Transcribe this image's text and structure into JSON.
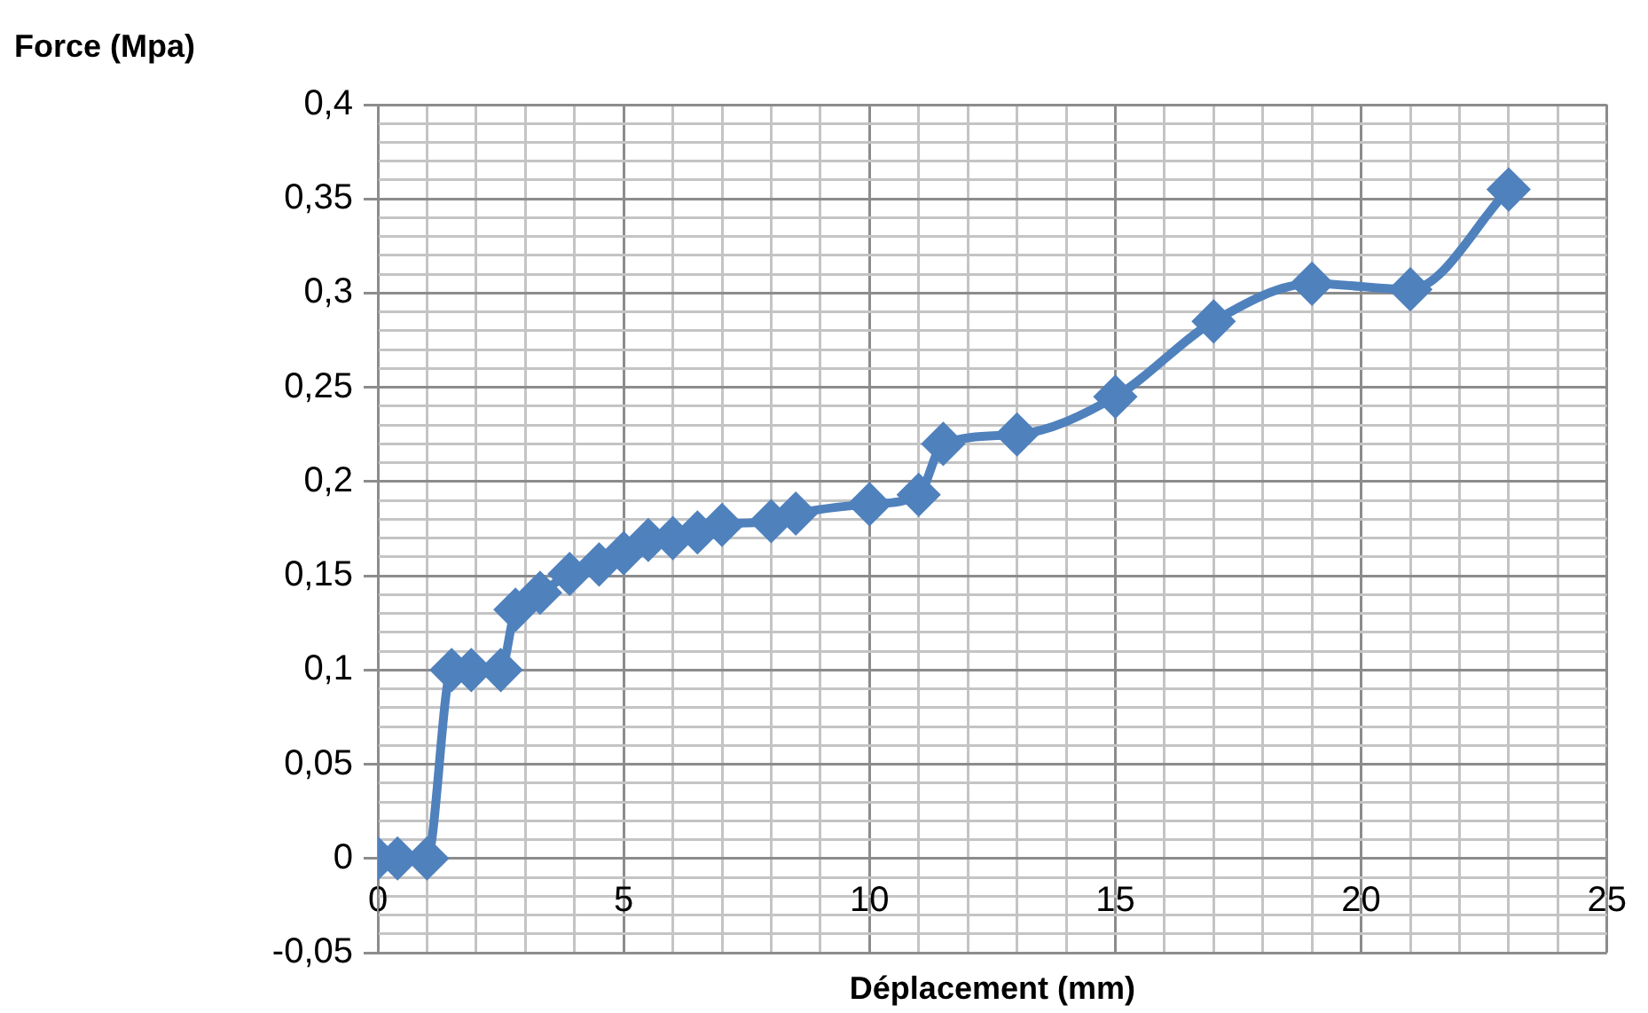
{
  "chart_data": {
    "type": "line",
    "xlabel": "Déplacement (mm)",
    "ylabel": "Force (Mpa)",
    "x": [
      0,
      0.4,
      1,
      1.5,
      1.9,
      2.5,
      2.8,
      3.3,
      3.9,
      4.5,
      5,
      5.5,
      6,
      6.5,
      7,
      8,
      8.5,
      10,
      11,
      11.5,
      13,
      15,
      17,
      19,
      21,
      23
    ],
    "series": [
      {
        "color": "#4f81bd",
        "values": [
          0,
          0,
          0,
          0.1,
          0.1,
          0.1,
          0.132,
          0.141,
          0.151,
          0.156,
          0.162,
          0.169,
          0.17,
          0.173,
          0.177,
          0.179,
          0.183,
          0.188,
          0.193,
          0.22,
          0.225,
          0.245,
          0.285,
          0.305,
          0.302,
          0.355
        ]
      }
    ],
    "xlim": [
      0,
      25
    ],
    "xticks": [
      0,
      {
        "value": 1,
        "label": null
      },
      {
        "value": 2,
        "label": null
      },
      {
        "value": 3,
        "label": null
      },
      {
        "value": 4,
        "label": null
      },
      5,
      {
        "value": 6,
        "label": null
      },
      {
        "value": 7,
        "label": null
      },
      {
        "value": 8,
        "label": null
      },
      {
        "value": 9,
        "label": null
      },
      10,
      {
        "value": 11,
        "label": null
      },
      {
        "value": 12,
        "label": null
      },
      {
        "value": 13,
        "label": null
      },
      {
        "value": 14,
        "label": null
      },
      15,
      {
        "value": 16,
        "label": null
      },
      {
        "value": 17,
        "label": null
      },
      {
        "value": 18,
        "label": null
      },
      {
        "value": 19,
        "label": null
      },
      20,
      {
        "value": 21,
        "label": null
      },
      {
        "value": 22,
        "label": null
      },
      {
        "value": 23,
        "label": null
      },
      {
        "value": 24,
        "label": null
      },
      25
    ],
    "ylim": [
      -0.05,
      0.4
    ],
    "yticks": [
      {
        "value": -0.05,
        "label": "-0,05"
      },
      {
        "value": -0.04,
        "label": null
      },
      {
        "value": -0.03,
        "label": null
      },
      {
        "value": -0.02,
        "label": null
      },
      {
        "value": -0.01,
        "label": null
      },
      0,
      {
        "value": 0.01,
        "label": null
      },
      {
        "value": 0.02,
        "label": null
      },
      {
        "value": 0.03,
        "label": null
      },
      {
        "value": 0.04,
        "label": null
      },
      {
        "value": 0.05,
        "label": "0,05"
      },
      {
        "value": 0.06,
        "label": null
      },
      {
        "value": 0.07,
        "label": null
      },
      {
        "value": 0.08,
        "label": null
      },
      {
        "value": 0.09,
        "label": null
      },
      {
        "value": 0.1,
        "label": "0,1"
      },
      {
        "value": 0.11,
        "label": null
      },
      {
        "value": 0.12,
        "label": null
      },
      {
        "value": 0.13,
        "label": null
      },
      {
        "value": 0.14,
        "label": null
      },
      {
        "value": 0.15,
        "label": "0,15"
      },
      {
        "value": 0.16,
        "label": null
      },
      {
        "value": 0.17,
        "label": null
      },
      {
        "value": 0.18,
        "label": null
      },
      {
        "value": 0.19,
        "label": null
      },
      {
        "value": 0.2,
        "label": "0,2"
      },
      {
        "value": 0.21,
        "label": null
      },
      {
        "value": 0.22,
        "label": null
      },
      {
        "value": 0.23,
        "label": null
      },
      {
        "value": 0.24,
        "label": null
      },
      {
        "value": 0.25,
        "label": "0,25"
      },
      {
        "value": 0.26,
        "label": null
      },
      {
        "value": 0.27,
        "label": null
      },
      {
        "value": 0.28,
        "label": null
      },
      {
        "value": 0.29,
        "label": null
      },
      {
        "value": 0.3,
        "label": "0,3"
      },
      {
        "value": 0.31,
        "label": null
      },
      {
        "value": 0.32,
        "label": null
      },
      {
        "value": 0.33,
        "label": null
      },
      {
        "value": 0.34,
        "label": null
      },
      {
        "value": 0.35,
        "label": "0,35"
      },
      {
        "value": 0.36,
        "label": null
      },
      {
        "value": 0.37,
        "label": null
      },
      {
        "value": 0.38,
        "label": null
      },
      {
        "value": 0.39,
        "label": null
      },
      {
        "value": 0.4,
        "label": "0,4"
      }
    ],
    "grid": true,
    "legend": false,
    "marker": "diamond",
    "line_style": "solid"
  }
}
